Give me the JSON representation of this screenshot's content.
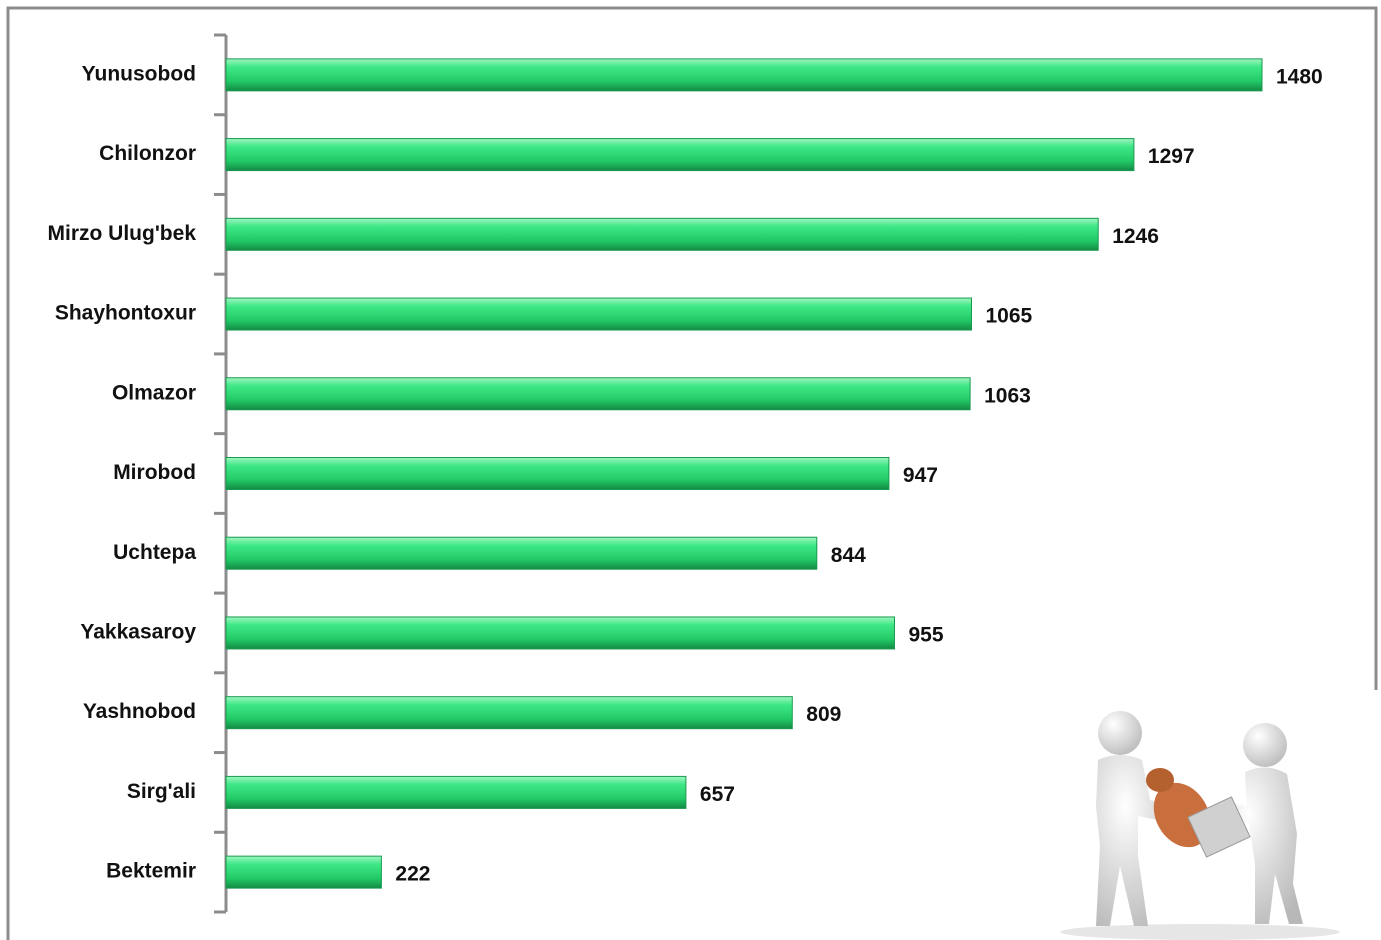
{
  "chart_data": {
    "type": "bar",
    "orientation": "horizontal",
    "color": "#2ee07a",
    "categories": [
      "Yunusobod",
      "Chilonzor",
      "Mirzo Ulug'bek",
      "Shayhontoxur",
      "Olmazor",
      "Mirobod",
      "Uchtepa",
      "Yakkasaroy",
      "Yashnobod",
      "Sirg'ali",
      "Bektemir"
    ],
    "values": [
      1480,
      1297,
      1246,
      1065,
      1063,
      947,
      844,
      955,
      809,
      657,
      222
    ]
  }
}
